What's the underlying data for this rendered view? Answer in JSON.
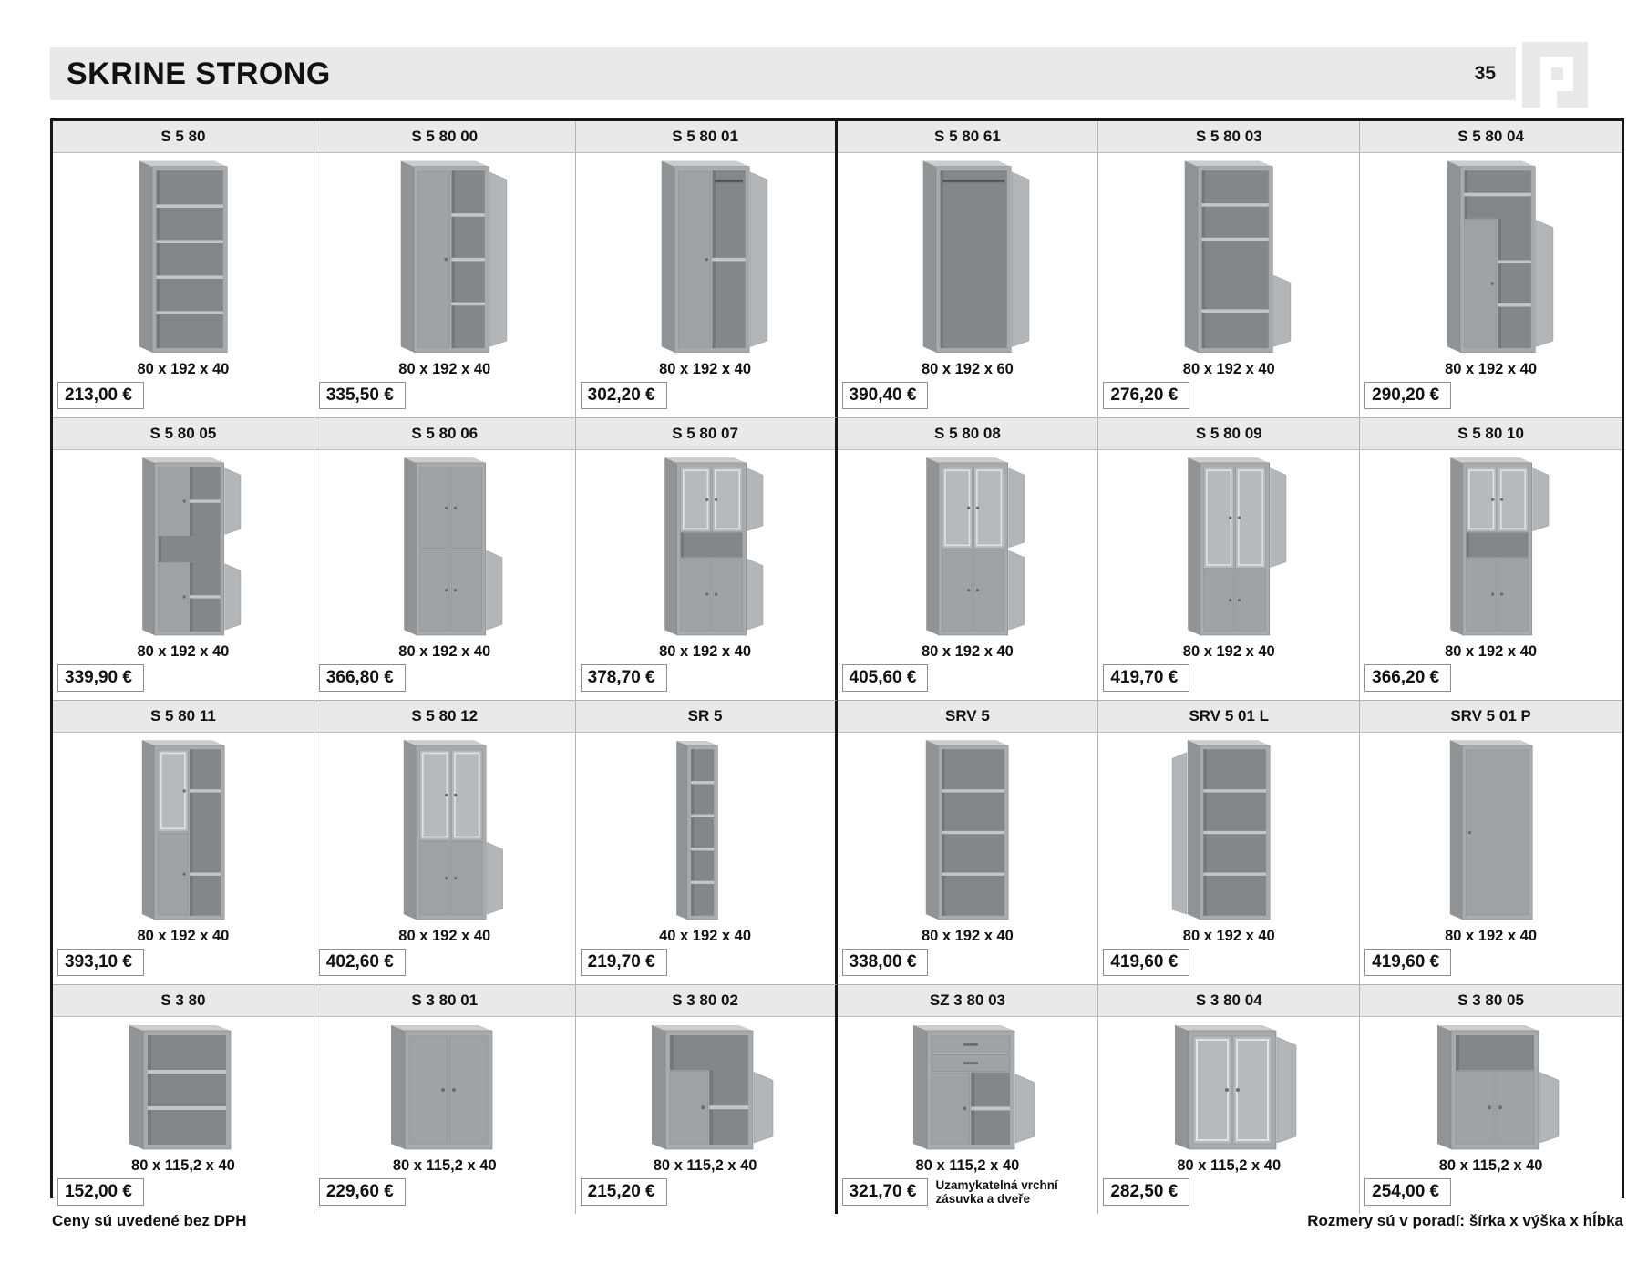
{
  "page": {
    "title": "SKRINE STRONG",
    "page_number": "35",
    "footer_left": "Ceny sú uvedené bez DPH",
    "footer_right": "Rozmery sú v poradí:  šírka x výška x hĺbka"
  },
  "colors": {
    "band": "#e9e9e9",
    "table_border": "#161616",
    "cab_top": "#caccce",
    "cab_side": "#909497",
    "cab_front": "#a8abae",
    "cab_interior": "#84878a",
    "cab_interior_shade": "#75787b",
    "cab_shelf": "#c3c6c9",
    "cab_door": "#9fa3a6",
    "cab_glass": "#b6babd",
    "cab_glass_frame": "#dfe2e4",
    "cab_flap": "#b3b6b9",
    "cab_rail": "#57595c",
    "cab_handle": "#6a6d70"
  },
  "products": [
    {
      "code": "S 5 80",
      "dims": "80 x 192 x 40",
      "price": "213,00 €",
      "cabinet": {
        "size": "tall",
        "zones": [
          {
            "type": "open",
            "h": 1,
            "shelves": 4
          }
        ]
      }
    },
    {
      "code": "S 5 80 00",
      "dims": "80 x 192 x 40",
      "price": "335,50 €",
      "cabinet": {
        "size": "tall",
        "zones": [
          {
            "type": "door-left",
            "h": 1,
            "shelves": 3,
            "flap": "right"
          }
        ]
      }
    },
    {
      "code": "S 5 80 01",
      "dims": "80 x 192 x 40",
      "price": "302,20 €",
      "cabinet": {
        "size": "tall",
        "zones": [
          {
            "type": "door-left",
            "h": 1,
            "shelves": 1,
            "rail": true,
            "flap": "right"
          }
        ]
      }
    },
    {
      "code": "S 5 80 61",
      "dims": "80 x 192 x 60",
      "price": "390,40 €",
      "cabinet": {
        "size": "tall",
        "zones": [
          {
            "type": "open",
            "h": 1,
            "shelves": 0,
            "rail": true,
            "flap": "right"
          }
        ]
      }
    },
    {
      "code": "S 5 80 03",
      "dims": "80 x 192 x 40",
      "price": "276,20 €",
      "cabinet": {
        "size": "tall",
        "zones": [
          {
            "type": "open",
            "h": 0.58,
            "shelves": 2
          },
          {
            "type": "open",
            "h": 0.42,
            "shelves": 1,
            "flap": "right"
          }
        ]
      }
    },
    {
      "code": "S 5 80 04",
      "dims": "80 x 192 x 40",
      "price": "290,20 €",
      "cabinet": {
        "size": "tall",
        "zones": [
          {
            "type": "open",
            "h": 0.27,
            "shelves": 1
          },
          {
            "type": "door-left",
            "h": 0.73,
            "shelves": 2,
            "flap": "right"
          }
        ]
      }
    },
    {
      "code": "S 5 80 05",
      "dims": "80 x 192 x 40",
      "price": "339,90 €",
      "cabinet": {
        "size": "tall",
        "zones": [
          {
            "type": "door-left",
            "h": 0.42,
            "shelves": 1,
            "flap": "right"
          },
          {
            "type": "open",
            "h": 0.16,
            "shelves": 0
          },
          {
            "type": "door-left",
            "h": 0.42,
            "shelves": 1,
            "flap": "right"
          }
        ]
      }
    },
    {
      "code": "S 5 80 06",
      "dims": "80 x 192 x 40",
      "price": "366,80 €",
      "cabinet": {
        "size": "tall",
        "zones": [
          {
            "type": "doors",
            "h": 0.5
          },
          {
            "type": "doors",
            "h": 0.5,
            "flap": "right"
          }
        ]
      }
    },
    {
      "code": "S 5 80 07",
      "dims": "80 x 192 x 40",
      "price": "378,70 €",
      "cabinet": {
        "size": "tall",
        "zones": [
          {
            "type": "glass",
            "h": 0.4,
            "flap": "right"
          },
          {
            "type": "open",
            "h": 0.15,
            "shelves": 0
          },
          {
            "type": "doors",
            "h": 0.45,
            "flap": "right"
          }
        ]
      }
    },
    {
      "code": "S 5 80 08",
      "dims": "80 x 192 x 40",
      "price": "405,60 €",
      "cabinet": {
        "size": "tall",
        "zones": [
          {
            "type": "glass",
            "h": 0.5,
            "flap": "right"
          },
          {
            "type": "doors",
            "h": 0.5,
            "flap": "right"
          }
        ]
      }
    },
    {
      "code": "S 5 80 09",
      "dims": "80 x 192 x 40",
      "price": "419,70 €",
      "cabinet": {
        "size": "tall",
        "zones": [
          {
            "type": "glass",
            "h": 0.62,
            "flap": "right"
          },
          {
            "type": "doors",
            "h": 0.38
          }
        ]
      }
    },
    {
      "code": "S 5 80 10",
      "dims": "80 x 192 x 40",
      "price": "366,20 €",
      "cabinet": {
        "size": "tall",
        "zones": [
          {
            "type": "glass",
            "h": 0.4,
            "flap": "right"
          },
          {
            "type": "open",
            "h": 0.15,
            "shelves": 0
          },
          {
            "type": "doors",
            "h": 0.45
          }
        ]
      }
    },
    {
      "code": "S 5 80 11",
      "dims": "80 x 192 x 40",
      "price": "393,10 €",
      "cabinet": {
        "size": "tall",
        "zones": [
          {
            "type": "glass-left",
            "h": 0.5,
            "shelves": 1
          },
          {
            "type": "door-left",
            "h": 0.5,
            "shelves": 1
          }
        ]
      }
    },
    {
      "code": "S 5 80 12",
      "dims": "80 x 192 x 40",
      "price": "402,60 €",
      "cabinet": {
        "size": "tall",
        "zones": [
          {
            "type": "glass",
            "h": 0.55
          },
          {
            "type": "doors",
            "h": 0.45,
            "flap": "right"
          }
        ]
      }
    },
    {
      "code": "SR 5",
      "dims": "40 x 192 x 40",
      "price": "219,70 €",
      "cabinet": {
        "size": "narrow",
        "zones": [
          {
            "type": "open",
            "h": 1,
            "shelves": 4
          }
        ]
      }
    },
    {
      "code": "SRV 5",
      "dims": "80 x 192 x 40",
      "price": "338,00 €",
      "cabinet": {
        "size": "tall",
        "zones": [
          {
            "type": "open",
            "h": 1,
            "shelves": 3
          }
        ]
      }
    },
    {
      "code": "SRV 5 01 L",
      "dims": "80 x 192 x 40",
      "price": "419,60 €",
      "cabinet": {
        "size": "tall",
        "zones": [
          {
            "type": "open",
            "h": 1,
            "shelves": 3,
            "flap": "left"
          }
        ]
      }
    },
    {
      "code": "SRV 5 01 P",
      "dims": "80 x 192 x 40",
      "price": "419,60 €",
      "cabinet": {
        "size": "tall",
        "zones": [
          {
            "type": "door-full",
            "h": 1,
            "handle": "left"
          }
        ]
      }
    },
    {
      "code": "S 3 80",
      "dims": "80 x 115,2 x 40",
      "price": "152,00 €",
      "cabinet": {
        "size": "short",
        "zones": [
          {
            "type": "open",
            "h": 1,
            "shelves": 2
          }
        ]
      }
    },
    {
      "code": "S 3 80 01",
      "dims": "80 x 115,2 x 40",
      "price": "229,60 €",
      "cabinet": {
        "size": "short",
        "zones": [
          {
            "type": "doors",
            "h": 1
          }
        ]
      }
    },
    {
      "code": "S 3 80 02",
      "dims": "80 x 115,2 x 40",
      "price": "215,20 €",
      "cabinet": {
        "size": "short",
        "zones": [
          {
            "type": "open",
            "h": 0.32,
            "shelves": 0
          },
          {
            "type": "door-left",
            "h": 0.68,
            "shelves": 1,
            "flap": "right"
          }
        ]
      }
    },
    {
      "code": "SZ 3 80 03",
      "dims": "80 x 115,2 x 40",
      "price": "321,70 €",
      "note": "Uzamykatelná vrchní zásuvka a dveře",
      "cabinet": {
        "size": "short",
        "zones": [
          {
            "type": "drawers",
            "h": 0.34
          },
          {
            "type": "door-left",
            "h": 0.66,
            "shelves": 1,
            "flap": "right"
          }
        ]
      }
    },
    {
      "code": "S 3 80 04",
      "dims": "80 x 115,2 x 40",
      "price": "282,50 €",
      "cabinet": {
        "size": "short",
        "zones": [
          {
            "type": "glass",
            "h": 1,
            "flap": "right"
          }
        ]
      }
    },
    {
      "code": "S 3 80 05",
      "dims": "80 x 115,2 x 40",
      "price": "254,00 €",
      "cabinet": {
        "size": "short",
        "zones": [
          {
            "type": "open",
            "h": 0.32,
            "shelves": 0
          },
          {
            "type": "doors",
            "h": 0.68,
            "flap": "right"
          }
        ]
      }
    }
  ]
}
